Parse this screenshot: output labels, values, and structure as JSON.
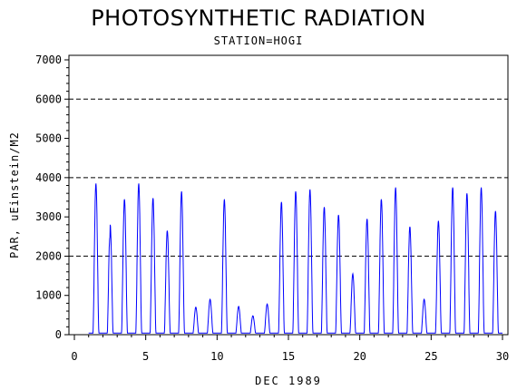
{
  "chart_data": {
    "type": "line",
    "title": "PHOTOSYNTHETIC RADIATION",
    "subtitle": "STATION=HOGI",
    "xlabel": "DEC 1989",
    "ylabel": "PAR, uEinstein/M2",
    "xlim": [
      0,
      30
    ],
    "ylim": [
      0,
      7000
    ],
    "x_ticks": [
      0,
      5,
      10,
      15,
      20,
      25,
      30
    ],
    "y_ticks": [
      0,
      1000,
      2000,
      3000,
      4000,
      5000,
      6000,
      7000
    ],
    "reference_lines": [
      2000,
      4000,
      6000
    ],
    "colors": {
      "series": "#0000ff",
      "axis": "#000000",
      "reference": "#000000"
    },
    "daily_peaks": [
      {
        "day": 1,
        "peak": 3850
      },
      {
        "day": 2,
        "peak": 2800,
        "secondary": 2500
      },
      {
        "day": 3,
        "peak": 3450
      },
      {
        "day": 4,
        "peak": 3850
      },
      {
        "day": 5,
        "peak": 3480
      },
      {
        "day": 6,
        "peak": 2650
      },
      {
        "day": 7,
        "peak": 3650
      },
      {
        "day": 8,
        "peak": 700
      },
      {
        "day": 9,
        "peak": 900
      },
      {
        "day": 10,
        "peak": 3450
      },
      {
        "day": 11,
        "peak": 720
      },
      {
        "day": 12,
        "peak": 480
      },
      {
        "day": 13,
        "peak": 780
      },
      {
        "day": 14,
        "peak": 3380
      },
      {
        "day": 15,
        "peak": 3650
      },
      {
        "day": 16,
        "peak": 3700
      },
      {
        "day": 17,
        "peak": 3250
      },
      {
        "day": 18,
        "peak": 3050
      },
      {
        "day": 19,
        "peak": 1550
      },
      {
        "day": 20,
        "peak": 2950
      },
      {
        "day": 21,
        "peak": 3450
      },
      {
        "day": 22,
        "peak": 3750
      },
      {
        "day": 23,
        "peak": 2750
      },
      {
        "day": 24,
        "peak": 900
      },
      {
        "day": 25,
        "peak": 2900
      },
      {
        "day": 26,
        "peak": 3750
      },
      {
        "day": 27,
        "peak": 3600
      },
      {
        "day": 28,
        "peak": 3750
      },
      {
        "day": 29,
        "peak": 3150
      }
    ]
  }
}
